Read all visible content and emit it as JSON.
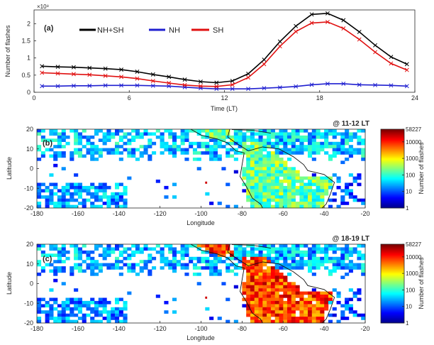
{
  "chart_data": [
    {
      "panel_label": "(a)",
      "type": "line",
      "xlabel": "Time (LT)",
      "ylabel": "Number of flashes",
      "y_exponent": "×10⁸",
      "xlim": [
        0,
        24
      ],
      "ylim": [
        0,
        2.4
      ],
      "xticks": [
        "0",
        "6",
        "12",
        "18",
        "24"
      ],
      "yticks": [
        "0",
        "0.5",
        "1",
        "1.5",
        "2"
      ],
      "x": [
        0.5,
        1.5,
        2.5,
        3.5,
        4.5,
        5.5,
        6.5,
        7.5,
        8.5,
        9.5,
        10.5,
        11.5,
        12.5,
        13.5,
        14.5,
        15.5,
        16.5,
        17.5,
        18.5,
        19.5,
        20.5,
        21.5,
        22.5,
        23.5
      ],
      "series": [
        {
          "name": "NH+SH",
          "color": "#000000",
          "values": [
            0.76,
            0.74,
            0.73,
            0.71,
            0.69,
            0.66,
            0.6,
            0.52,
            0.45,
            0.37,
            0.31,
            0.28,
            0.33,
            0.54,
            0.95,
            1.48,
            1.93,
            2.27,
            2.3,
            2.1,
            1.76,
            1.37,
            1.03,
            0.82
          ]
        },
        {
          "name": "NH",
          "color": "#1f1fd0",
          "values": [
            0.18,
            0.18,
            0.19,
            0.19,
            0.2,
            0.2,
            0.2,
            0.19,
            0.18,
            0.15,
            0.12,
            0.1,
            0.1,
            0.1,
            0.12,
            0.14,
            0.17,
            0.22,
            0.25,
            0.25,
            0.22,
            0.21,
            0.2,
            0.18
          ]
        },
        {
          "name": "SH",
          "color": "#e01010",
          "values": [
            0.57,
            0.55,
            0.53,
            0.51,
            0.48,
            0.45,
            0.4,
            0.33,
            0.27,
            0.21,
            0.18,
            0.17,
            0.22,
            0.43,
            0.82,
            1.34,
            1.77,
            2.02,
            2.05,
            1.86,
            1.54,
            1.17,
            0.84,
            0.65
          ]
        }
      ],
      "legend_position": "top-left"
    },
    {
      "panel_label": "(b)",
      "type": "heatmap",
      "annotation": "@ 11-12 LT",
      "xlabel": "Longitude",
      "ylabel": "Latitude",
      "xlim": [
        -180,
        -20
      ],
      "ylim": [
        -20,
        20
      ],
      "xticks": [
        "-180",
        "-160",
        "-140",
        "-120",
        "-100",
        "-80",
        "-60",
        "-40",
        "-20"
      ],
      "yticks": [
        "-20",
        "-10",
        "0",
        "10",
        "20"
      ],
      "colorbar_label": "Number of flashes",
      "colorbar_ticks": [
        "58227",
        "10000",
        "1000",
        "100",
        "10",
        "1"
      ],
      "colorbar_scale": "log",
      "colorbar_range": [
        1,
        58227
      ],
      "intensity": {
        "land": 0.48,
        "ocean_north": 0.32,
        "ocean_south": 0.28,
        "scatter": 0.22
      }
    },
    {
      "panel_label": "(c)",
      "type": "heatmap",
      "annotation": "@ 18-19 LT",
      "xlabel": "Longitude",
      "ylabel": "Latitude",
      "xlim": [
        -180,
        -20
      ],
      "ylim": [
        -20,
        20
      ],
      "xticks": [
        "-180",
        "-160",
        "-140",
        "-120",
        "-100",
        "-80",
        "-60",
        "-40",
        "-20"
      ],
      "yticks": [
        "-20",
        "-10",
        "0",
        "10",
        "20"
      ],
      "colorbar_label": "Number of flashes",
      "colorbar_ticks": [
        "58227",
        "10000",
        "1000",
        "100",
        "10",
        "1"
      ],
      "colorbar_scale": "log",
      "colorbar_range": [
        1,
        58227
      ],
      "intensity": {
        "land": 0.82,
        "ocean_north": 0.3,
        "ocean_south": 0.26,
        "scatter": 0.22
      }
    }
  ],
  "colormap": [
    "#00008f",
    "#0000ff",
    "#0080ff",
    "#00ffff",
    "#80ff80",
    "#ffff00",
    "#ff8000",
    "#ff0000",
    "#800000"
  ]
}
